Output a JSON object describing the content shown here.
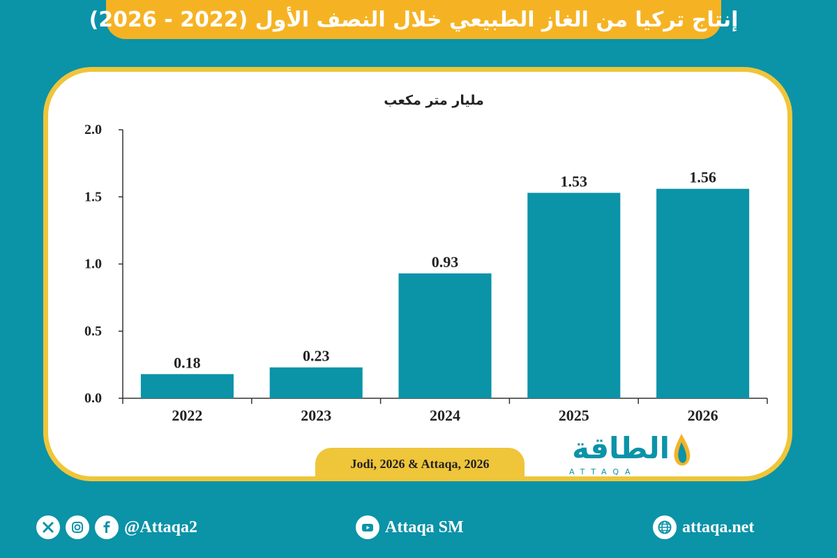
{
  "header": {
    "title": "إنتاج تركيا من الغاز الطبيعي خلال النصف الأول (2022 - 2026)"
  },
  "chart_data": {
    "type": "bar",
    "ylabel": "مليار متر مكعب",
    "categories": [
      "2022",
      "2023",
      "2024",
      "2025",
      "2026"
    ],
    "values": [
      0.18,
      0.23,
      0.93,
      1.53,
      1.56
    ],
    "value_labels": [
      "0.18",
      "0.23",
      "0.93",
      "1.53",
      "1.56"
    ],
    "yticks": [
      "0.0",
      "0.5",
      "1.0",
      "1.5",
      "2.0"
    ],
    "ylim": [
      0,
      2.0
    ],
    "grid": false,
    "bar_color": "#0b93a8"
  },
  "source": {
    "text": "Jodi, 2026 & Attaqa, 2026"
  },
  "logo": {
    "arabic": "الطاقة",
    "english": "ATTAQA"
  },
  "footer": {
    "social_handle": "@Attaqa2",
    "youtube": "Attaqa SM",
    "website": "attaqa.net"
  },
  "colors": {
    "background": "#0b93a8",
    "accent": "#f5b324",
    "card_border": "#efc53a"
  }
}
